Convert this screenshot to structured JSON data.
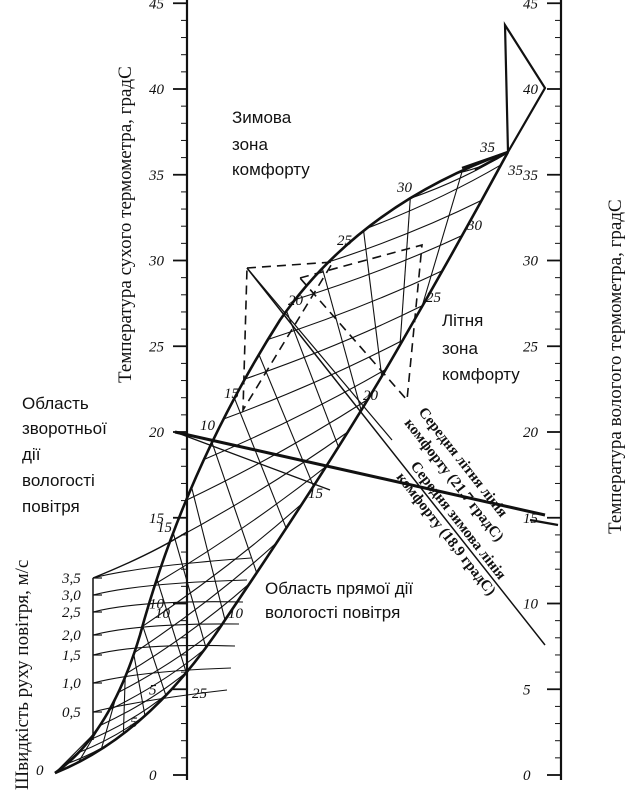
{
  "axes": {
    "dry_label": "Температура сухого термометра, градС",
    "wet_label": "Температура вологого термометра, градС",
    "air_label": "Швидкість руху повітря, м/с",
    "dry_ticks": [
      "0",
      "5",
      "10",
      "15",
      "20",
      "25",
      "30",
      "35",
      "40",
      "45"
    ],
    "wet_ticks": [
      "0",
      "5",
      "10",
      "15",
      "20",
      "25",
      "30",
      "35",
      "40",
      "45"
    ],
    "air_ticks": [
      "0",
      "0,5",
      "1,0",
      "1,5",
      "2,0",
      "2,5",
      "3,0",
      "3,5"
    ]
  },
  "grid_labels": {
    "left": [
      "5",
      "10",
      "15",
      "20",
      "25",
      "30",
      "35"
    ],
    "right": [
      "10",
      "15",
      "20",
      "25",
      "30",
      "35"
    ],
    "bottom": "25"
  },
  "zones": {
    "winter": [
      "Зимова",
      "зона",
      "комфорту"
    ],
    "summer": [
      "Літня",
      "зона",
      "комфорту"
    ],
    "reverse": [
      "Область",
      "зворотньої",
      "дії",
      "вологості",
      "повітря"
    ],
    "direct": [
      "Область прямої дії",
      "вологості повітря"
    ]
  },
  "lines": {
    "summer_mid": [
      "Середня літня лінія",
      "комфорту (21,7 градС)"
    ],
    "winter_mid": [
      "Середня зимова лінія",
      "комфорту (18,9 градС)"
    ]
  },
  "colors": {
    "ink": "#111111",
    "paper": "#ffffff"
  }
}
